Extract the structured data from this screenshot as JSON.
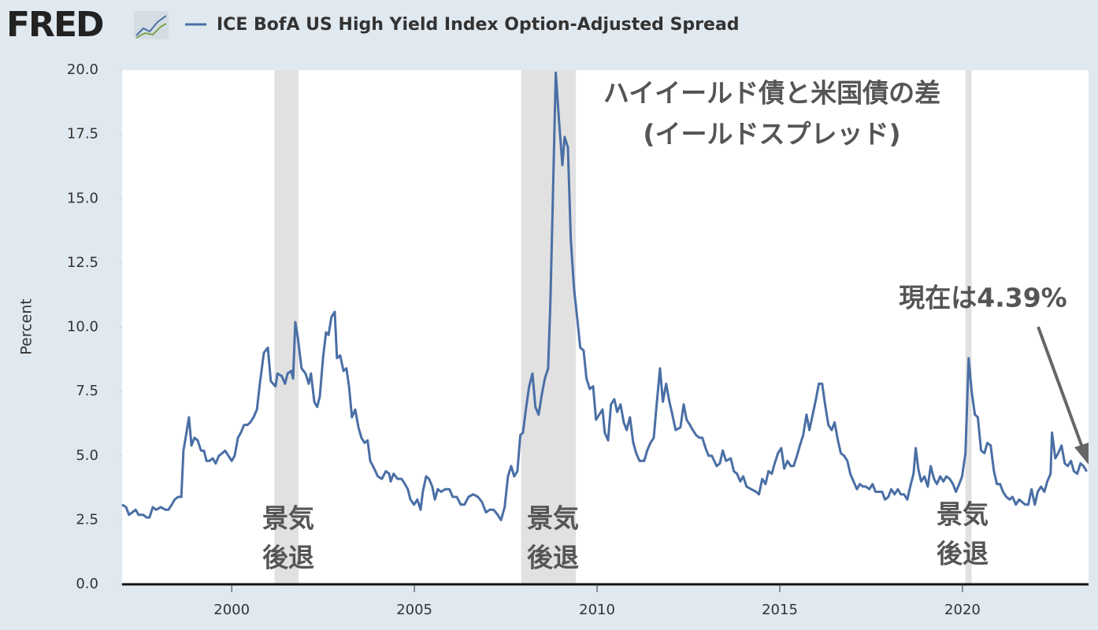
{
  "logo": "FRED",
  "chart_data": {
    "type": "line",
    "series_title": "ICE BofA US High Yield Index Option-Adjusted Spread",
    "y_label": "Percent",
    "annotations": [
      "ハイイールド債と米国債の差",
      "(イールドスプレッド)",
      "現在は4.39%",
      "景気",
      "後退",
      "景気",
      "後退",
      "景気",
      "後退"
    ],
    "xlim": [
      1997,
      2023.45
    ],
    "xticks": [
      2000,
      2005,
      2010,
      2015,
      2020
    ],
    "ylim": [
      0,
      20
    ],
    "yticks": [
      {
        "value": 0,
        "label": "0.0"
      },
      2.5,
      {
        "value": 5,
        "label": "5.0"
      },
      7.5,
      {
        "value": 10,
        "label": "10.0"
      },
      12.5,
      {
        "value": 15,
        "label": "15.0"
      },
      17.5,
      {
        "value": 20,
        "label": "20.0"
      }
    ],
    "grid": false,
    "shaded_ranges": [
      [
        2001.17,
        2001.83
      ],
      [
        2007.92,
        2009.42
      ],
      [
        2020.08,
        2020.25
      ]
    ],
    "shade_color": "#e1e1e1",
    "x": [
      1997.0,
      1997.11,
      1997.19,
      1997.28,
      1997.37,
      1997.45,
      1997.58,
      1997.67,
      1997.75,
      1997.84,
      1997.93,
      1998.06,
      1998.19,
      1998.27,
      1998.36,
      1998.44,
      1998.53,
      1998.62,
      1998.68,
      1998.75,
      1998.83,
      1998.9,
      1998.98,
      1999.07,
      1999.16,
      1999.24,
      1999.31,
      1999.39,
      1999.48,
      1999.56,
      1999.65,
      1999.74,
      1999.82,
      1999.91,
      2000.0,
      2000.08,
      2000.17,
      2000.25,
      2000.34,
      2000.43,
      2000.51,
      2000.6,
      2000.69,
      2000.77,
      2000.88,
      2000.99,
      2001.07,
      2001.2,
      2001.25,
      2001.37,
      2001.46,
      2001.53,
      2001.63,
      2001.68,
      2001.74,
      2001.81,
      2001.91,
      2002.02,
      2002.11,
      2002.17,
      2002.26,
      2002.34,
      2002.41,
      2002.5,
      2002.58,
      2002.65,
      2002.73,
      2002.82,
      2002.88,
      2002.97,
      2003.06,
      2003.14,
      2003.21,
      2003.29,
      2003.38,
      2003.47,
      2003.55,
      2003.64,
      2003.72,
      2003.79,
      2003.9,
      2004.0,
      2004.11,
      2004.22,
      2004.31,
      2004.35,
      2004.43,
      2004.54,
      2004.65,
      2004.74,
      2004.82,
      2004.89,
      2004.99,
      2005.08,
      2005.17,
      2005.23,
      2005.32,
      2005.4,
      2005.49,
      2005.56,
      2005.64,
      2005.73,
      2005.84,
      2005.96,
      2006.05,
      2006.16,
      2006.27,
      2006.37,
      2006.48,
      2006.61,
      2006.74,
      2006.85,
      2006.96,
      2007.06,
      2007.17,
      2007.28,
      2007.37,
      2007.47,
      2007.56,
      2007.65,
      2007.73,
      2007.82,
      2007.9,
      2007.97,
      2008.06,
      2008.14,
      2008.23,
      2008.31,
      2008.4,
      2008.49,
      2008.57,
      2008.66,
      2008.72,
      2008.79,
      2008.87,
      2008.96,
      2009.05,
      2009.11,
      2009.2,
      2009.28,
      2009.37,
      2009.46,
      2009.54,
      2009.63,
      2009.71,
      2009.8,
      2009.89,
      2009.97,
      2010.06,
      2010.15,
      2010.21,
      2010.3,
      2010.38,
      2010.47,
      2010.55,
      2010.64,
      2010.73,
      2010.81,
      2010.9,
      2010.99,
      2011.07,
      2011.16,
      2011.29,
      2011.37,
      2011.46,
      2011.55,
      2011.63,
      2011.72,
      2011.8,
      2011.89,
      2011.98,
      2012.06,
      2012.15,
      2012.28,
      2012.37,
      2012.45,
      2012.54,
      2012.62,
      2012.71,
      2012.8,
      2012.88,
      2012.97,
      2013.05,
      2013.14,
      2013.27,
      2013.36,
      2013.44,
      2013.53,
      2013.66,
      2013.74,
      2013.83,
      2013.92,
      2014.0,
      2014.09,
      2014.22,
      2014.35,
      2014.43,
      2014.52,
      2014.61,
      2014.69,
      2014.78,
      2014.86,
      2014.95,
      2015.04,
      2015.12,
      2015.21,
      2015.3,
      2015.38,
      2015.47,
      2015.55,
      2015.64,
      2015.73,
      2015.81,
      2015.9,
      2015.99,
      2016.07,
      2016.16,
      2016.24,
      2016.33,
      2016.42,
      2016.5,
      2016.59,
      2016.67,
      2016.76,
      2016.85,
      2016.93,
      2017.02,
      2017.11,
      2017.19,
      2017.28,
      2017.36,
      2017.45,
      2017.54,
      2017.62,
      2017.71,
      2017.8,
      2017.88,
      2017.97,
      2018.05,
      2018.14,
      2018.23,
      2018.31,
      2018.4,
      2018.49,
      2018.57,
      2018.66,
      2018.72,
      2018.79,
      2018.87,
      2018.96,
      2019.05,
      2019.13,
      2019.22,
      2019.3,
      2019.39,
      2019.48,
      2019.56,
      2019.65,
      2019.74,
      2019.82,
      2019.91,
      2019.99,
      2020.08,
      2020.17,
      2020.25,
      2020.34,
      2020.42,
      2020.51,
      2020.6,
      2020.68,
      2020.77,
      2020.86,
      2020.94,
      2021.03,
      2021.11,
      2021.2,
      2021.29,
      2021.37,
      2021.46,
      2021.55,
      2021.63,
      2021.72,
      2021.8,
      2021.89,
      2021.98,
      2022.06,
      2022.15,
      2022.24,
      2022.32,
      2022.41,
      2022.45,
      2022.54,
      2022.62,
      2022.71,
      2022.8,
      2022.88,
      2022.97,
      2023.05,
      2023.14,
      2023.23,
      2023.31,
      2023.4
    ],
    "series": [
      {
        "name": "ICE BofA US High Yield Index Option-Adjusted Spread",
        "color": "#4a6fa5",
        "values": [
          3.1,
          3.0,
          2.7,
          2.8,
          2.9,
          2.7,
          2.7,
          2.6,
          2.6,
          3.0,
          2.9,
          3.0,
          2.9,
          2.9,
          3.1,
          3.3,
          3.4,
          3.4,
          5.2,
          5.8,
          6.5,
          5.4,
          5.7,
          5.6,
          5.2,
          5.2,
          4.8,
          4.8,
          4.9,
          4.7,
          5.0,
          5.1,
          5.2,
          5.0,
          4.8,
          5.0,
          5.7,
          5.9,
          6.2,
          6.2,
          6.3,
          6.5,
          6.8,
          7.8,
          9.0,
          9.2,
          7.9,
          7.7,
          8.2,
          8.1,
          7.8,
          8.2,
          8.3,
          8.0,
          10.2,
          9.6,
          8.4,
          8.2,
          7.8,
          8.2,
          7.1,
          6.9,
          7.3,
          8.8,
          9.8,
          9.7,
          10.4,
          10.6,
          8.8,
          8.9,
          8.3,
          8.4,
          7.7,
          6.5,
          6.8,
          6.1,
          5.7,
          5.5,
          5.6,
          4.8,
          4.5,
          4.2,
          4.1,
          4.4,
          4.3,
          4.0,
          4.3,
          4.1,
          4.1,
          3.9,
          3.7,
          3.3,
          3.1,
          3.3,
          2.9,
          3.6,
          4.2,
          4.1,
          3.8,
          3.3,
          3.7,
          3.6,
          3.7,
          3.7,
          3.4,
          3.4,
          3.1,
          3.1,
          3.4,
          3.5,
          3.4,
          3.2,
          2.8,
          2.9,
          2.9,
          2.7,
          2.5,
          3.0,
          4.2,
          4.6,
          4.2,
          4.4,
          5.8,
          5.9,
          6.9,
          7.7,
          8.2,
          6.9,
          6.6,
          7.4,
          8.0,
          8.4,
          10.9,
          15.0,
          19.9,
          18.0,
          16.3,
          17.4,
          17.0,
          13.4,
          11.5,
          10.3,
          9.2,
          9.1,
          8.0,
          7.6,
          7.7,
          6.4,
          6.6,
          6.8,
          5.9,
          5.6,
          7.0,
          7.2,
          6.7,
          7.0,
          6.3,
          6.0,
          6.5,
          5.5,
          5.1,
          4.8,
          4.8,
          5.2,
          5.5,
          5.7,
          7.0,
          8.4,
          7.1,
          7.8,
          7.1,
          6.6,
          6.0,
          6.1,
          7.0,
          6.4,
          6.2,
          6.0,
          5.8,
          5.7,
          5.7,
          5.3,
          5.0,
          5.0,
          4.6,
          4.7,
          5.2,
          4.8,
          4.9,
          4.4,
          4.3,
          4.0,
          4.2,
          3.8,
          3.7,
          3.6,
          3.5,
          4.1,
          3.9,
          4.4,
          4.3,
          4.7,
          5.1,
          5.3,
          4.5,
          4.8,
          4.6,
          4.6,
          5.0,
          5.4,
          5.8,
          6.6,
          6.0,
          6.6,
          7.2,
          7.8,
          7.8,
          7.0,
          6.2,
          6.0,
          6.3,
          5.6,
          5.1,
          5.0,
          4.8,
          4.3,
          4.0,
          3.7,
          3.9,
          3.8,
          3.8,
          3.7,
          3.9,
          3.6,
          3.6,
          3.6,
          3.3,
          3.4,
          3.7,
          3.5,
          3.7,
          3.5,
          3.5,
          3.3,
          3.8,
          4.3,
          5.3,
          4.5,
          4.0,
          4.2,
          3.8,
          4.6,
          4.1,
          3.9,
          4.2,
          4.0,
          4.2,
          4.1,
          3.9,
          3.6,
          3.9,
          4.2,
          5.1,
          8.8,
          7.5,
          6.6,
          6.5,
          5.2,
          5.1,
          5.5,
          5.4,
          4.4,
          3.9,
          3.9,
          3.6,
          3.4,
          3.3,
          3.4,
          3.1,
          3.3,
          3.2,
          3.1,
          3.1,
          3.7,
          3.1,
          3.6,
          3.8,
          3.6,
          4.0,
          4.3,
          5.9,
          4.9,
          5.1,
          5.4,
          4.7,
          4.6,
          4.8,
          4.4,
          4.3,
          4.7,
          4.6,
          4.39
        ]
      }
    ]
  }
}
